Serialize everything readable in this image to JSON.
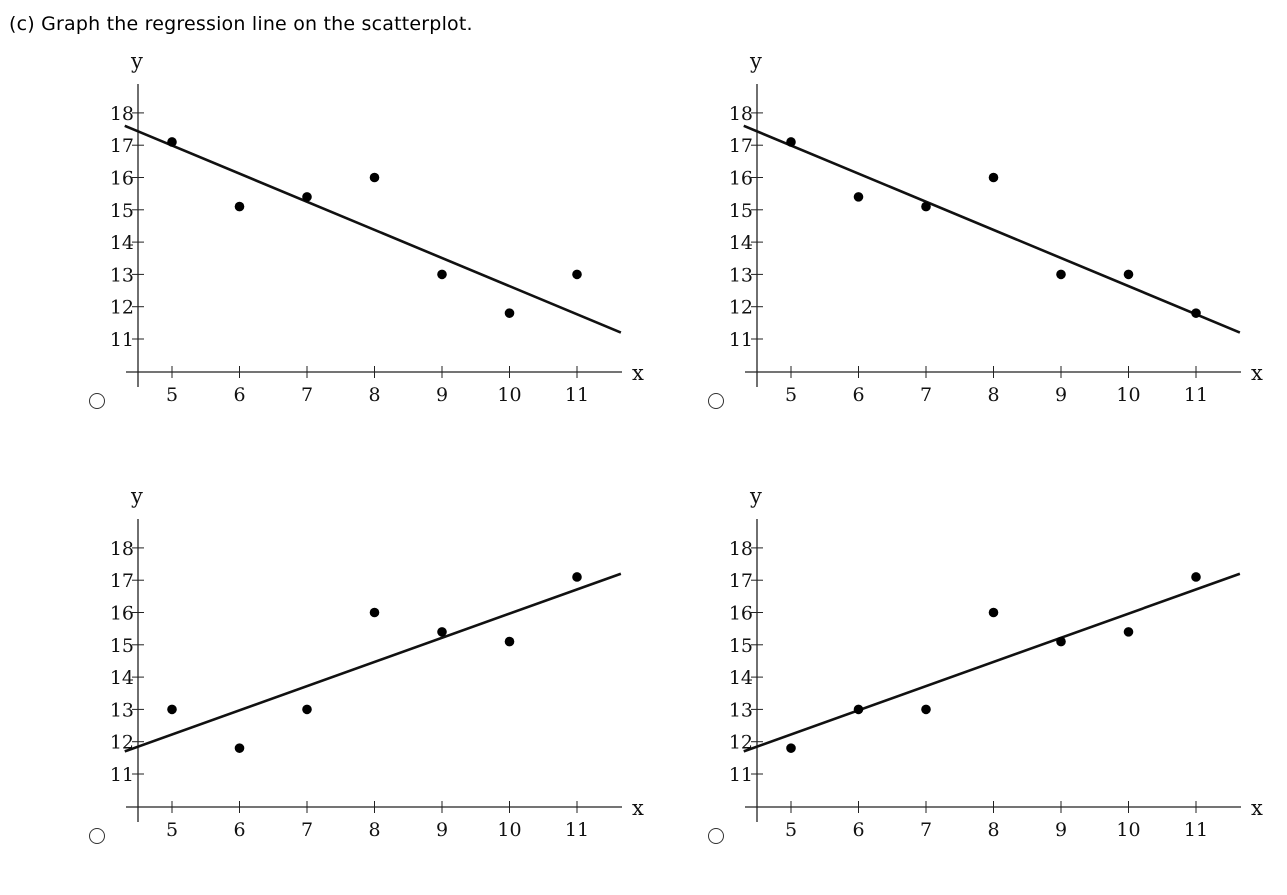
{
  "question": "(c) Graph the regression line on the scatterplot.",
  "axis": {
    "x_label": "x",
    "y_label": "y",
    "x_ticks": [
      5,
      6,
      7,
      8,
      9,
      10,
      11
    ],
    "y_ticks": [
      11,
      12,
      13,
      14,
      15,
      16,
      17,
      18
    ]
  },
  "chart_data": [
    {
      "type": "scatter",
      "xlabel": "x",
      "ylabel": "y",
      "xlim": [
        4.5,
        11.6
      ],
      "ylim": [
        10,
        19
      ],
      "points": [
        [
          5,
          17.1
        ],
        [
          6,
          15.1
        ],
        [
          7,
          15.4
        ],
        [
          8,
          16.0
        ],
        [
          9,
          13.0
        ],
        [
          10,
          11.8
        ],
        [
          11,
          13.0
        ]
      ],
      "line": {
        "x": [
          4.3,
          11.65
        ],
        "y": [
          17.6,
          11.2
        ]
      }
    },
    {
      "type": "scatter",
      "xlabel": "x",
      "ylabel": "y",
      "xlim": [
        4.5,
        11.6
      ],
      "ylim": [
        10,
        19
      ],
      "points": [
        [
          5,
          17.1
        ],
        [
          6,
          15.4
        ],
        [
          7,
          15.1
        ],
        [
          8,
          16.0
        ],
        [
          9,
          13.0
        ],
        [
          10,
          13.0
        ],
        [
          11,
          11.8
        ]
      ],
      "line": {
        "x": [
          4.3,
          11.65
        ],
        "y": [
          17.6,
          11.2
        ]
      }
    },
    {
      "type": "scatter",
      "xlabel": "x",
      "ylabel": "y",
      "xlim": [
        4.5,
        11.6
      ],
      "ylim": [
        10,
        19
      ],
      "points": [
        [
          5,
          13.0
        ],
        [
          6,
          11.8
        ],
        [
          7,
          13.0
        ],
        [
          8,
          16.0
        ],
        [
          9,
          15.4
        ],
        [
          10,
          15.1
        ],
        [
          11,
          17.1
        ]
      ],
      "line": {
        "x": [
          4.3,
          11.65
        ],
        "y": [
          11.7,
          17.2
        ]
      }
    },
    {
      "type": "scatter",
      "xlabel": "x",
      "ylabel": "y",
      "xlim": [
        4.5,
        11.6
      ],
      "ylim": [
        10,
        19
      ],
      "points": [
        [
          5,
          11.8
        ],
        [
          6,
          13.0
        ],
        [
          7,
          13.0
        ],
        [
          8,
          16.0
        ],
        [
          9,
          15.1
        ],
        [
          10,
          15.4
        ],
        [
          11,
          17.1
        ]
      ],
      "line": {
        "x": [
          4.3,
          11.65
        ],
        "y": [
          11.7,
          17.2
        ]
      }
    }
  ]
}
